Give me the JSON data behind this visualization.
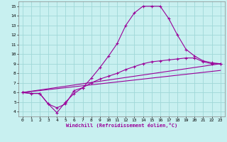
{
  "xlabel": "Windchill (Refroidissement éolien,°C)",
  "bg_color": "#c8f0f0",
  "grid_color": "#a0d8d8",
  "line_color": "#990099",
  "xlim": [
    -0.5,
    23.5
  ],
  "ylim": [
    3.5,
    15.5
  ],
  "xticks": [
    0,
    1,
    2,
    3,
    4,
    5,
    6,
    7,
    8,
    9,
    10,
    11,
    12,
    13,
    14,
    15,
    16,
    17,
    18,
    19,
    20,
    21,
    22,
    23
  ],
  "yticks": [
    4,
    5,
    6,
    7,
    8,
    9,
    10,
    11,
    12,
    13,
    14,
    15
  ],
  "line1_x": [
    0,
    1,
    2,
    3,
    4,
    5,
    6,
    7,
    8,
    9,
    10,
    11,
    12,
    13,
    14,
    15,
    16,
    17,
    18,
    19,
    20,
    21,
    22,
    23
  ],
  "line1_y": [
    6.0,
    5.9,
    5.9,
    4.8,
    4.4,
    4.8,
    6.2,
    6.5,
    7.5,
    8.6,
    9.8,
    11.1,
    13.0,
    14.3,
    15.0,
    15.0,
    15.0,
    13.7,
    12.0,
    10.5,
    9.8,
    9.3,
    9.1,
    9.0
  ],
  "line2_x": [
    0,
    1,
    2,
    3,
    4,
    5,
    6,
    7,
    8,
    9,
    10,
    11,
    12,
    13,
    14,
    15,
    16,
    17,
    18,
    19,
    20,
    21,
    22,
    23
  ],
  "line2_y": [
    6.0,
    5.9,
    5.9,
    4.8,
    3.9,
    5.0,
    5.9,
    6.5,
    7.0,
    7.4,
    7.7,
    8.0,
    8.4,
    8.7,
    9.0,
    9.2,
    9.3,
    9.4,
    9.5,
    9.6,
    9.6,
    9.2,
    9.0,
    9.0
  ],
  "line3_x": [
    0,
    23
  ],
  "line3_y": [
    6.0,
    8.3
  ],
  "line4_x": [
    0,
    23
  ],
  "line4_y": [
    6.0,
    9.0
  ]
}
